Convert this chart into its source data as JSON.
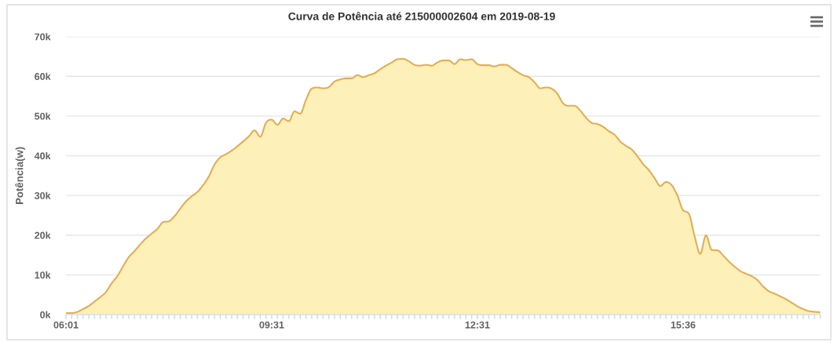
{
  "chart_data": {
    "type": "area",
    "title": "Curva de Potência até 215000002604 em 2019-08-19",
    "ylabel": "Potência(w)",
    "categories": [
      "06:01",
      null,
      null,
      null,
      null,
      null,
      null,
      null,
      null,
      null,
      null,
      null,
      null,
      null,
      null,
      null,
      null,
      null,
      null,
      null,
      null,
      null,
      null,
      null,
      null,
      null,
      null,
      null,
      null,
      null,
      null,
      null,
      null,
      null,
      null,
      null,
      "09:31",
      null,
      null,
      null,
      null,
      null,
      null,
      null,
      null,
      null,
      null,
      null,
      null,
      null,
      null,
      null,
      null,
      null,
      null,
      null,
      null,
      null,
      null,
      null,
      null,
      null,
      null,
      null,
      null,
      null,
      null,
      null,
      null,
      null,
      null,
      null,
      "12:31",
      null,
      null,
      null,
      null,
      null,
      null,
      null,
      null,
      null,
      null,
      null,
      null,
      null,
      null,
      null,
      null,
      null,
      null,
      null,
      null,
      null,
      null,
      null,
      null,
      null,
      null,
      null,
      null,
      null,
      null,
      null,
      null,
      null,
      null,
      null,
      "15:36",
      null,
      null,
      null,
      null,
      null,
      null,
      null,
      null,
      null,
      null,
      null,
      null,
      null,
      null,
      null,
      null,
      null,
      null,
      null,
      null,
      null,
      null,
      null,
      null
    ],
    "series": [
      {
        "color": "#e4ad52",
        "values": [
          400,
          400,
          700,
          1400,
          2200,
          3300,
          4400,
          5700,
          7900,
          9700,
          12200,
          14500,
          16000,
          17700,
          19200,
          20400,
          21600,
          23300,
          23500,
          24800,
          26700,
          28500,
          29800,
          30900,
          32600,
          34800,
          37800,
          39600,
          40400,
          41300,
          42400,
          43600,
          44900,
          46400,
          44800,
          48300,
          49100,
          47800,
          49400,
          48700,
          51200,
          50600,
          54100,
          56900,
          57200,
          57000,
          57300,
          58700,
          59200,
          59500,
          59500,
          60300,
          59800,
          60300,
          60800,
          61800,
          62700,
          63500,
          64300,
          64400,
          63800,
          62900,
          62700,
          62900,
          62700,
          63500,
          64000,
          64000,
          63100,
          64300,
          64100,
          64300,
          63100,
          62800,
          62800,
          62500,
          62900,
          62900,
          62100,
          61100,
          60300,
          59800,
          58500,
          57000,
          57200,
          56900,
          55600,
          53200,
          52600,
          52600,
          51400,
          49600,
          48300,
          48000,
          47300,
          46200,
          45300,
          43600,
          42500,
          41600,
          39900,
          37900,
          36400,
          34400,
          32400,
          33400,
          32600,
          30000,
          26300,
          25400,
          19800,
          15300,
          20000,
          16300,
          16200,
          14900,
          13400,
          12100,
          11000,
          10300,
          9700,
          8700,
          7100,
          5900,
          5300,
          4600,
          3900,
          3000,
          2100,
          1400,
          900,
          700,
          600
        ]
      }
    ],
    "ylim": [
      0,
      70000
    ],
    "yticks": [
      {
        "value": 0,
        "label": "0k"
      },
      {
        "value": 10000,
        "label": "10k"
      },
      {
        "value": 20000,
        "label": "20k"
      },
      {
        "value": 30000,
        "label": "30k"
      },
      {
        "value": 40000,
        "label": "40k"
      },
      {
        "value": 50000,
        "label": "50k"
      },
      {
        "value": 60000,
        "label": "60k"
      },
      {
        "value": 70000,
        "label": "70k"
      }
    ],
    "grid": "y"
  }
}
